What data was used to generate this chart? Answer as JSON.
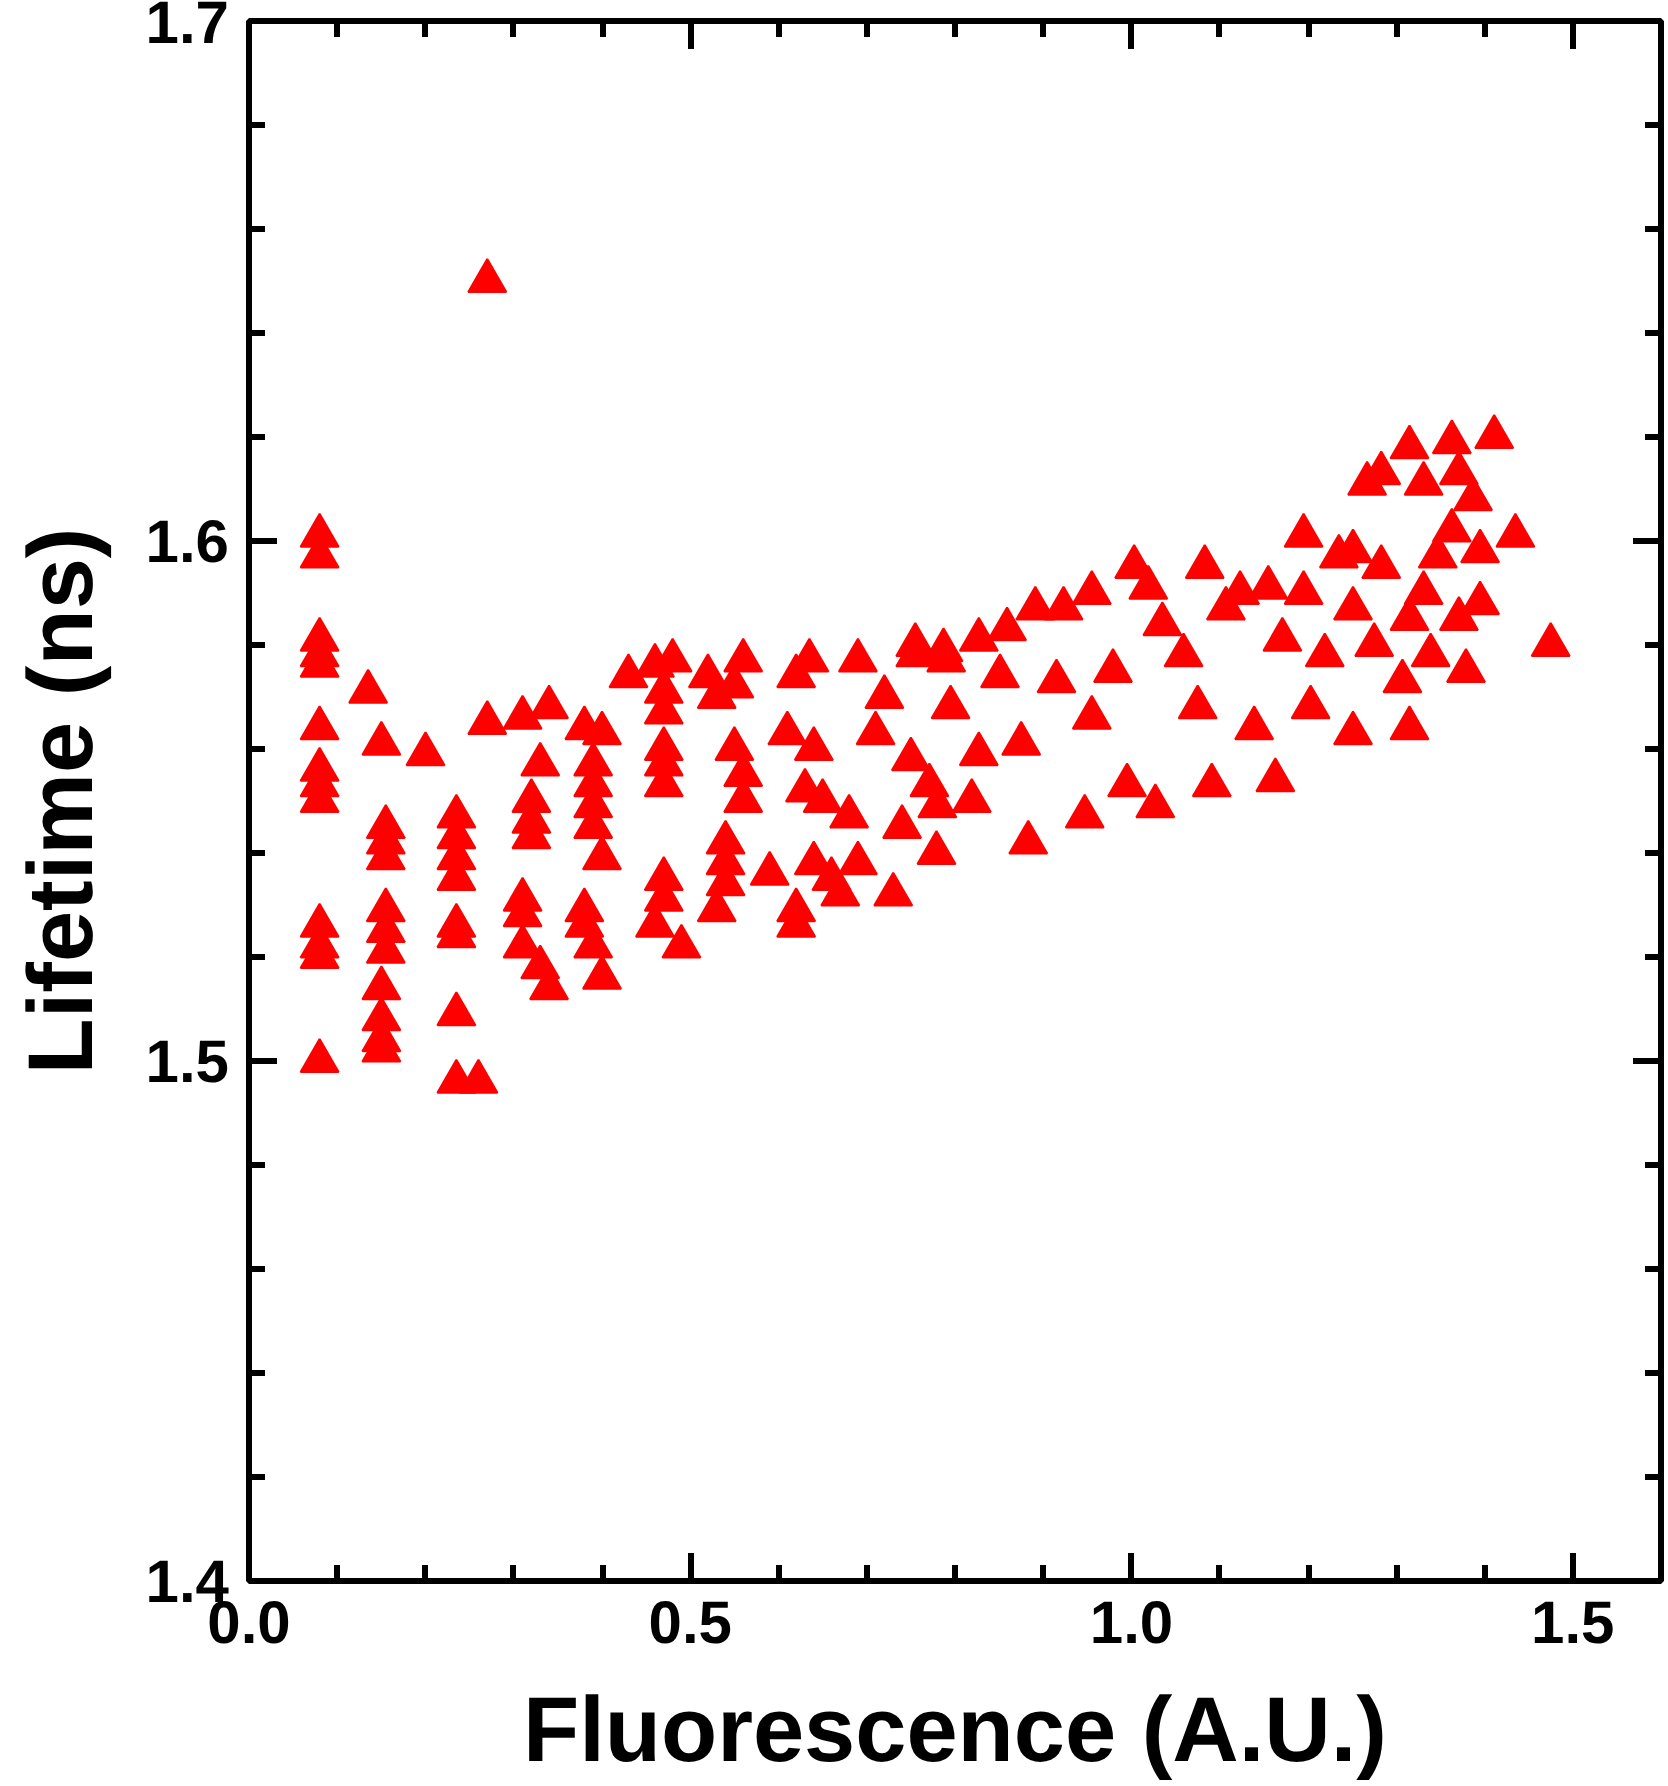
{
  "chart_data": {
    "type": "scatter",
    "xlabel": "Fluorescence (A.U.)",
    "ylabel": "Lifetime (ns)",
    "xlim": [
      0,
      1.6
    ],
    "ylim": [
      1.4,
      1.7
    ],
    "xticks": [
      {
        "value": 0,
        "label": "0.0"
      },
      0.5,
      {
        "value": 1,
        "label": "1.0"
      },
      1.5
    ],
    "yticks": [
      1.4,
      1.5,
      1.6,
      1.7
    ],
    "marker": "triangle",
    "series": [
      {
        "color": "#ff0000",
        "x": [
          0.27,
          0.08,
          0.08,
          0.08,
          0.08,
          0.08,
          0.08,
          0.08,
          0.08,
          0.08,
          0.08,
          0.08,
          0.08,
          0.08,
          0.135,
          0.15,
          0.155,
          0.155,
          0.155,
          0.155,
          0.155,
          0.155,
          0.15,
          0.15,
          0.15,
          0.15,
          0.2,
          0.235,
          0.235,
          0.235,
          0.235,
          0.235,
          0.235,
          0.235,
          0.235,
          0.26,
          0.27,
          0.31,
          0.34,
          0.33,
          0.32,
          0.32,
          0.32,
          0.31,
          0.31,
          0.31,
          0.33,
          0.34,
          0.38,
          0.4,
          0.39,
          0.39,
          0.39,
          0.39,
          0.4,
          0.38,
          0.38,
          0.39,
          0.4,
          0.43,
          0.46,
          0.48,
          0.47,
          0.47,
          0.47,
          0.47,
          0.47,
          0.47,
          0.47,
          0.46,
          0.49,
          0.52,
          0.53,
          0.56,
          0.55,
          0.55,
          0.56,
          0.56,
          0.54,
          0.54,
          0.54,
          0.53,
          0.59,
          0.62,
          0.62,
          0.635,
          0.62,
          0.69,
          0.755,
          0.79,
          0.72,
          0.61,
          0.64,
          0.71,
          0.75,
          0.63,
          0.65,
          0.68,
          0.78,
          0.74,
          0.64,
          0.69,
          0.66,
          0.67,
          0.73,
          0.755,
          0.787,
          0.827,
          0.859,
          0.891,
          0.923,
          0.955,
          0.795,
          0.851,
          0.915,
          0.827,
          0.875,
          0.955,
          0.771,
          0.819,
          0.779,
          0.883,
          0.947,
          0.995,
          1.027,
          0.979,
          1.003,
          1.019,
          1.035,
          1.059,
          1.075,
          1.091,
          1.083,
          1.107,
          1.123,
          1.155,
          1.171,
          1.139,
          1.163,
          1.195,
          1.195,
          1.219,
          1.235,
          1.251,
          1.283,
          1.251,
          1.275,
          1.315,
          1.307,
          1.251,
          1.315,
          1.203,
          1.267,
          1.283,
          1.315,
          1.363,
          1.411,
          1.331,
          1.371,
          1.387,
          1.363,
          1.347,
          1.395,
          1.435,
          1.331,
          1.371,
          1.395,
          1.339,
          1.379,
          1.475
        ],
        "values": [
          1.65,
          1.601,
          1.597,
          1.581,
          1.578,
          1.576,
          1.564,
          1.556,
          1.553,
          1.55,
          1.526,
          1.522,
          1.52,
          1.5,
          1.571,
          1.561,
          1.545,
          1.542,
          1.539,
          1.529,
          1.525,
          1.521,
          1.514,
          1.508,
          1.504,
          1.502,
          1.559,
          1.547,
          1.543,
          1.539,
          1.535,
          1.526,
          1.524,
          1.509,
          1.496,
          1.496,
          1.565,
          1.566,
          1.568,
          1.557,
          1.55,
          1.546,
          1.543,
          1.531,
          1.528,
          1.522,
          1.518,
          1.514,
          1.564,
          1.563,
          1.557,
          1.553,
          1.549,
          1.545,
          1.539,
          1.529,
          1.526,
          1.522,
          1.516,
          1.574,
          1.576,
          1.577,
          1.571,
          1.567,
          1.56,
          1.557,
          1.553,
          1.535,
          1.531,
          1.526,
          1.522,
          1.574,
          1.57,
          1.577,
          1.572,
          1.56,
          1.555,
          1.55,
          1.542,
          1.538,
          1.534,
          1.529,
          1.536,
          1.529,
          1.526,
          1.577,
          1.574,
          1.577,
          1.578,
          1.577,
          1.57,
          1.563,
          1.56,
          1.563,
          1.558,
          1.552,
          1.55,
          1.547,
          1.549,
          1.545,
          1.538,
          1.538,
          1.535,
          1.532,
          1.532,
          1.58,
          1.579,
          1.581,
          1.583,
          1.587,
          1.587,
          1.59,
          1.568,
          1.574,
          1.573,
          1.559,
          1.561,
          1.566,
          1.553,
          1.55,
          1.54,
          1.542,
          1.547,
          1.553,
          1.549,
          1.575,
          1.595,
          1.591,
          1.584,
          1.578,
          1.568,
          1.553,
          1.595,
          1.587,
          1.59,
          1.591,
          1.581,
          1.564,
          1.554,
          1.601,
          1.59,
          1.578,
          1.597,
          1.598,
          1.595,
          1.587,
          1.58,
          1.585,
          1.573,
          1.563,
          1.564,
          1.568,
          1.611,
          1.613,
          1.618,
          1.619,
          1.62,
          1.611,
          1.613,
          1.608,
          1.602,
          1.597,
          1.598,
          1.601,
          1.59,
          1.585,
          1.588,
          1.578,
          1.575,
          1.58
        ]
      }
    ]
  }
}
